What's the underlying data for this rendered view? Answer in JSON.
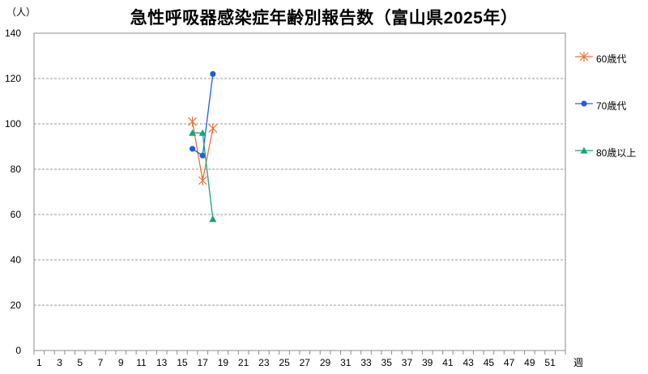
{
  "chart_data": {
    "type": "line",
    "title": "急性呼吸器感染症年齢別報告数（富山県2025年）",
    "ylabel": "（人）",
    "xlabel": "週",
    "ylim": [
      0,
      140
    ],
    "yticks": [
      0,
      20,
      40,
      60,
      80,
      100,
      120,
      140
    ],
    "xlim": [
      1,
      52
    ],
    "xticks": [
      1,
      3,
      5,
      7,
      9,
      11,
      13,
      15,
      17,
      19,
      21,
      23,
      25,
      27,
      29,
      31,
      33,
      35,
      37,
      39,
      41,
      43,
      45,
      47,
      49,
      51
    ],
    "grid": "horizontal dashed",
    "legend_position": "right",
    "series": [
      {
        "name": "60歳代",
        "color": "#E8743B",
        "marker": "asterisk",
        "x": [
          16,
          17,
          18
        ],
        "values": [
          101,
          75,
          98
        ]
      },
      {
        "name": "70歳代",
        "color": "#1F5FE0",
        "marker": "circle",
        "x": [
          16,
          17,
          18
        ],
        "values": [
          89,
          86,
          122
        ]
      },
      {
        "name": "80歳以上",
        "color": "#17A37A",
        "marker": "triangle",
        "x": [
          16,
          17,
          18
        ],
        "values": [
          96,
          96,
          58
        ]
      }
    ]
  }
}
